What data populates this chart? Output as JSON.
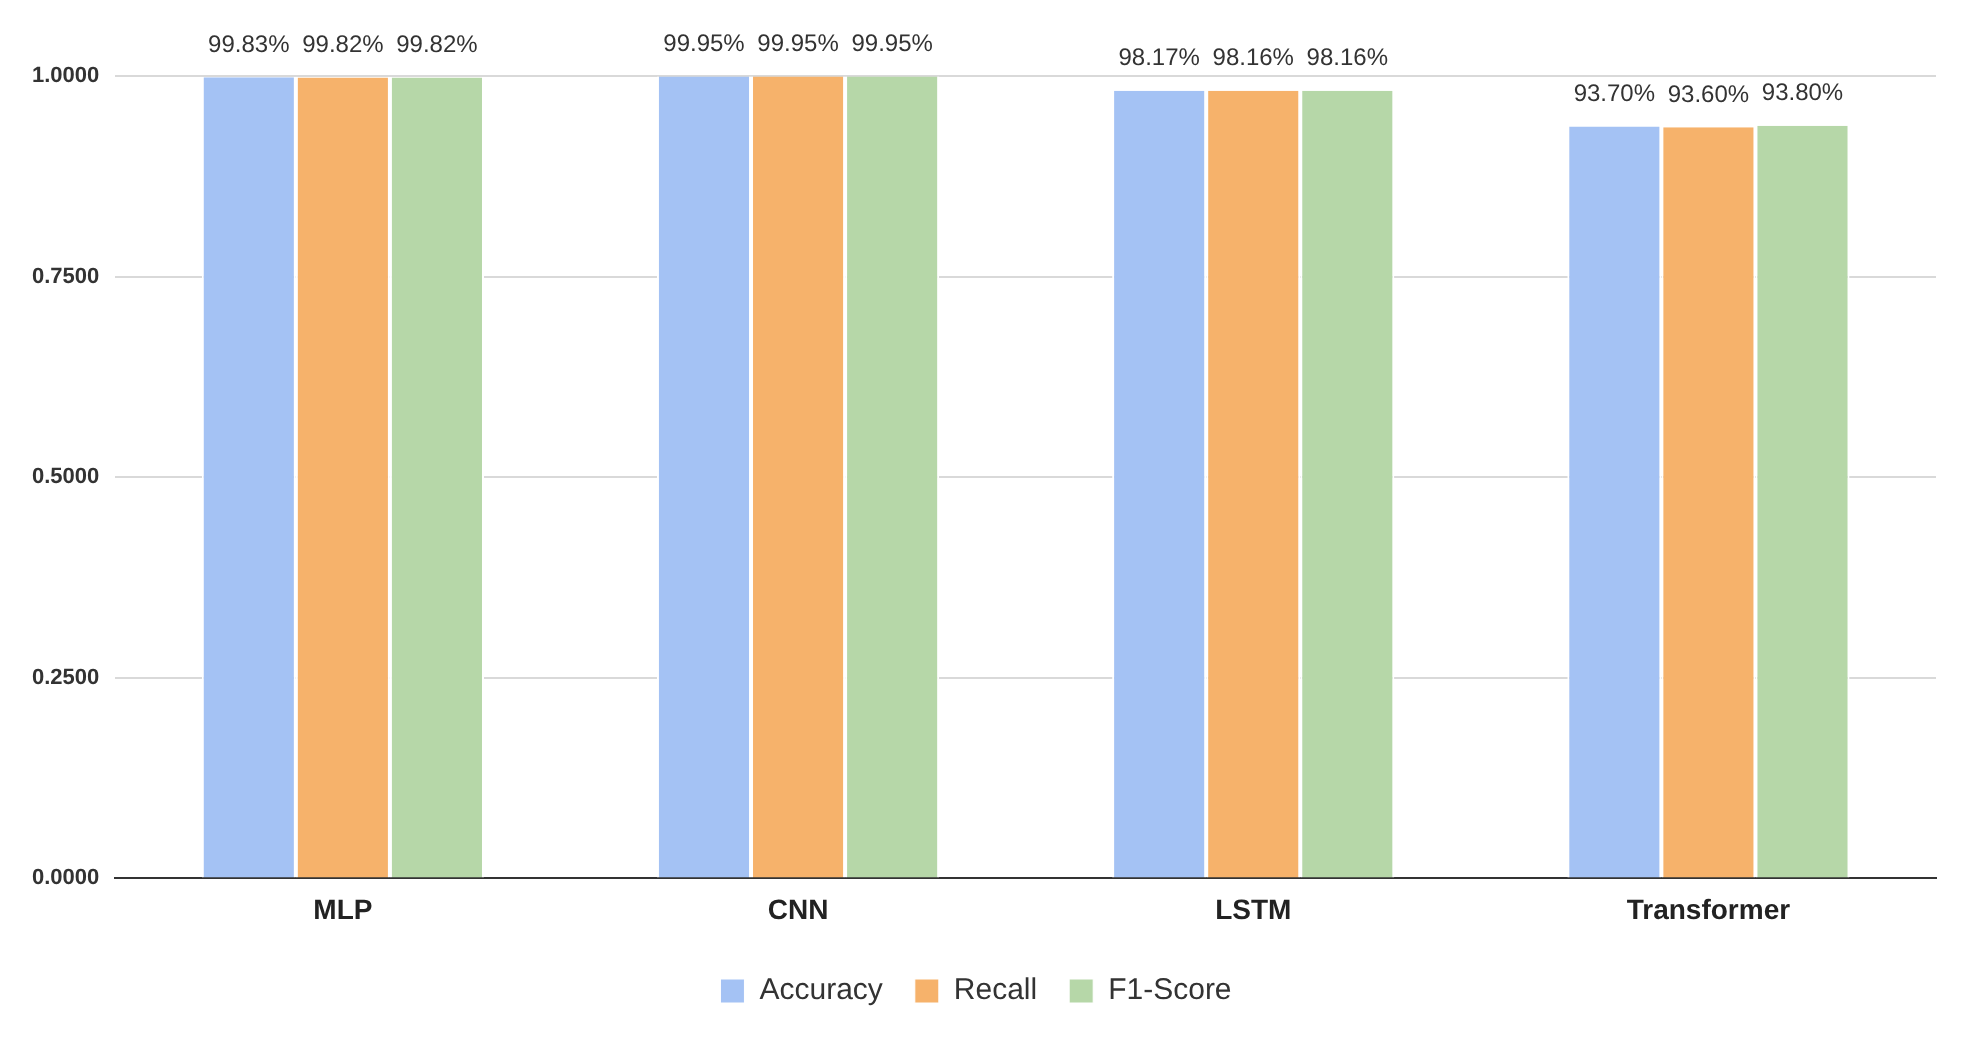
{
  "chart_data": {
    "type": "bar",
    "categories": [
      "MLP",
      "CNN",
      "LSTM",
      "Transformer"
    ],
    "series": [
      {
        "name": "Accuracy",
        "color": "#a4c2f4",
        "values": [
          0.9983,
          0.9995,
          0.9817,
          0.937
        ],
        "value_labels": [
          "99.83%",
          "99.95%",
          "98.17%",
          "93.70%"
        ]
      },
      {
        "name": "Recall",
        "color": "#f6b26b",
        "values": [
          0.9982,
          0.9995,
          0.9816,
          0.936
        ],
        "value_labels": [
          "99.82%",
          "99.95%",
          "98.16%",
          "93.60%"
        ]
      },
      {
        "name": "F1-Score",
        "color": "#b6d7a8",
        "values": [
          0.9982,
          0.9995,
          0.9816,
          0.938
        ],
        "value_labels": [
          "99.82%",
          "99.95%",
          "98.16%",
          "93.80%"
        ]
      }
    ],
    "ylim": [
      0,
      1
    ],
    "yticks": [
      {
        "value": 0,
        "label": "0.0000"
      },
      {
        "value": 0.25,
        "label": "0.2500"
      },
      {
        "value": 0.5,
        "label": "0.5000"
      },
      {
        "value": 0.75,
        "label": "0.7500"
      },
      {
        "value": 1,
        "label": "1.0000"
      }
    ],
    "grid": "y",
    "legend": "bottom"
  }
}
